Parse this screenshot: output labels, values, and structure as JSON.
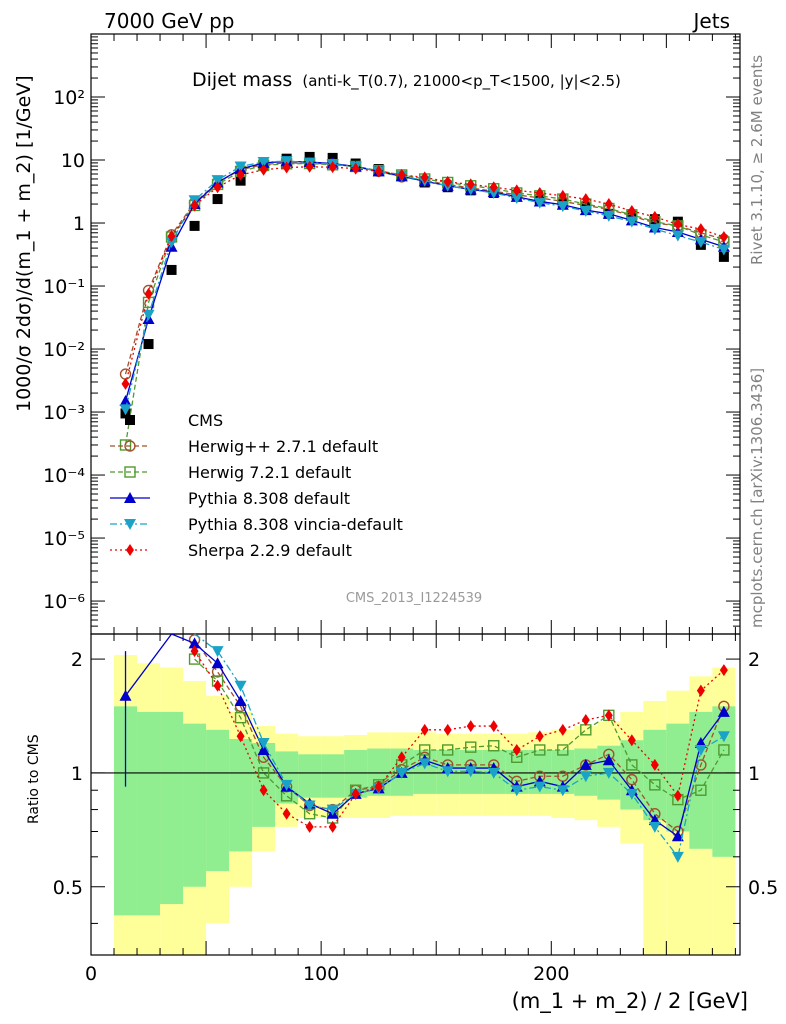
{
  "header": {
    "left": "7000 GeV pp",
    "right": "Jets"
  },
  "side_labels": {
    "rivet": "Rivet 3.1.10, ≥ 2.6M events",
    "mcplots": "mcplots.cern.ch [arXiv:1306.3436]"
  },
  "watermark": "CMS_2013_I1224539",
  "chart_data": [
    {
      "type": "scatter",
      "title_main": "Dijet mass",
      "title_detail": "(anti-k_T(0.7), 21000<p_T<1500, |y|<2.5)",
      "xlabel": "(m_1 + m_2) / 2 [GeV]",
      "ylabel": "1000/σ 2dσ)/d(m_1 + m_2) [1/GeV]",
      "xlim": [
        0,
        282
      ],
      "ylim": [
        3e-07,
        1000
      ],
      "yscale": "log",
      "x_ticks": [
        "0",
        "100",
        "200"
      ],
      "y_ticks": [
        "10^-6",
        "10^-5",
        "10^-4",
        "10^-3",
        "10^-2",
        "10^-1",
        "1",
        "10",
        "10^2"
      ],
      "legend_position": "lower-left",
      "x": [
        15,
        25,
        35,
        45,
        55,
        65,
        75,
        85,
        95,
        105,
        115,
        125,
        135,
        145,
        155,
        165,
        175,
        185,
        195,
        205,
        215,
        225,
        235,
        245,
        255,
        265,
        275
      ],
      "series": [
        {
          "name": "CMS",
          "color": "#000000",
          "marker": "square",
          "line": "none",
          "values": [
            0.00095,
            0.012,
            0.18,
            0.9,
            2.4,
            4.7,
            8.5,
            10.5,
            11.2,
            10.8,
            8.8,
            7.2,
            5.6,
            4.4,
            3.7,
            3.3,
            3.0,
            2.8,
            2.4,
            2.1,
            1.8,
            1.4,
            1.3,
            1.15,
            1.05,
            0.45,
            0.29
          ]
        },
        {
          "name": "Herwig++ 2.7.1 default",
          "color": "#a0522d",
          "marker": "open-circle",
          "line": "dashed",
          "values": [
            0.004,
            0.085,
            0.65,
            2.1,
            4.4,
            7.0,
            8.5,
            9.0,
            8.9,
            8.6,
            7.8,
            6.6,
            5.4,
            4.7,
            4.1,
            3.6,
            3.2,
            2.8,
            2.5,
            2.2,
            1.9,
            1.65,
            1.3,
            1.0,
            0.9,
            0.7,
            0.55
          ]
        },
        {
          "name": "Herwig 7.2.1 default",
          "color": "#4f9a2f",
          "marker": "open-square",
          "line": "dashed",
          "values": [
            0.0003,
            0.055,
            0.6,
            1.9,
            4.1,
            6.6,
            8.2,
            8.7,
            8.8,
            8.4,
            7.9,
            6.8,
            5.8,
            5.0,
            4.4,
            3.9,
            3.5,
            3.0,
            2.7,
            2.4,
            2.0,
            1.7,
            1.35,
            1.05,
            0.9,
            0.65,
            0.5
          ]
        },
        {
          "name": "Pythia 8.308 default",
          "color": "#0000cc",
          "marker": "triangle-up",
          "line": "solid",
          "values": [
            0.0015,
            0.03,
            0.42,
            2.0,
            4.4,
            7.2,
            9.0,
            9.5,
            9.3,
            8.8,
            7.9,
            6.6,
            5.5,
            4.6,
            3.9,
            3.4,
            3.1,
            2.6,
            2.2,
            1.95,
            1.6,
            1.4,
            1.1,
            0.85,
            0.72,
            0.55,
            0.42
          ]
        },
        {
          "name": "Pythia 8.308 vincia-default",
          "color": "#1aa3c7",
          "marker": "triangle-down",
          "line": "dashdot",
          "values": [
            0.0011,
            0.035,
            0.5,
            2.3,
            4.8,
            7.9,
            9.3,
            9.6,
            9.1,
            8.6,
            7.8,
            6.6,
            5.6,
            4.7,
            3.9,
            3.4,
            3.0,
            2.5,
            2.1,
            1.85,
            1.55,
            1.3,
            1.05,
            0.8,
            0.63,
            0.5,
            0.38
          ]
        },
        {
          "name": "Sherpa 2.2.9 default",
          "color": "#ee0000",
          "marker": "diamond",
          "line": "dotted",
          "values": [
            0.0028,
            0.075,
            0.62,
            1.9,
            3.7,
            5.8,
            7.0,
            7.6,
            7.8,
            7.7,
            7.3,
            6.6,
            5.8,
            5.3,
            4.5,
            4.1,
            3.7,
            3.3,
            3.0,
            2.7,
            2.4,
            2.0,
            1.55,
            1.25,
            0.95,
            0.8,
            0.6
          ]
        }
      ]
    },
    {
      "type": "line",
      "ylabel": "Ratio to CMS",
      "xlim": [
        0,
        282
      ],
      "ylim": [
        0.33,
        2.33
      ],
      "yscale": "log",
      "y_ticks": [
        "0.5",
        "1",
        "2"
      ],
      "x": [
        15,
        25,
        35,
        45,
        55,
        65,
        75,
        85,
        95,
        105,
        115,
        125,
        135,
        145,
        155,
        165,
        175,
        185,
        195,
        205,
        215,
        225,
        235,
        245,
        255,
        265,
        275
      ],
      "series": [
        {
          "name": "Herwig++ 2.7.1 default",
          "color": "#a0522d",
          "values": [
            null,
            null,
            null,
            2.25,
            1.85,
            1.5,
            1.1,
            0.92,
            0.82,
            0.8,
            0.9,
            0.92,
            1.02,
            1.1,
            1.05,
            1.05,
            1.05,
            0.95,
            0.98,
            0.98,
            1.05,
            1.12,
            0.96,
            0.78,
            0.7,
            1.05,
            1.5
          ]
        },
        {
          "name": "Herwig 7.2.1 default",
          "color": "#4f9a2f",
          "values": [
            null,
            null,
            null,
            2.0,
            1.75,
            1.4,
            1.0,
            0.87,
            0.78,
            0.76,
            0.9,
            0.93,
            1.05,
            1.15,
            1.15,
            1.17,
            1.18,
            1.1,
            1.15,
            1.15,
            1.3,
            1.42,
            1.05,
            0.93,
            0.85,
            0.9,
            1.15
          ]
        },
        {
          "name": "Pythia 8.308 default",
          "color": "#0000cc",
          "values": [
            1.6,
            null,
            2.35,
            2.2,
            1.95,
            1.55,
            1.15,
            0.92,
            0.83,
            0.78,
            0.88,
            0.91,
            1.0,
            1.08,
            1.03,
            1.03,
            1.03,
            0.92,
            0.95,
            0.92,
            1.05,
            1.08,
            0.9,
            0.75,
            0.68,
            1.2,
            1.45
          ]
        },
        {
          "name": "Pythia 8.308 vincia-default",
          "color": "#1aa3c7",
          "values": [
            null,
            null,
            null,
            2.35,
            2.1,
            1.7,
            1.2,
            0.93,
            0.82,
            0.8,
            0.88,
            0.91,
            1.0,
            1.06,
            1.01,
            1.01,
            1.0,
            0.9,
            0.92,
            0.9,
            0.98,
            1.0,
            0.88,
            0.72,
            0.6,
            1.15,
            1.25
          ]
        },
        {
          "name": "Sherpa 2.2.9 default",
          "color": "#ee0000",
          "values": [
            null,
            null,
            null,
            2.1,
            1.7,
            1.25,
            0.9,
            0.78,
            0.72,
            0.72,
            0.88,
            0.92,
            1.1,
            1.3,
            1.3,
            1.33,
            1.33,
            1.15,
            1.25,
            1.3,
            1.38,
            1.42,
            1.22,
            1.05,
            0.87,
            1.65,
            1.87
          ]
        }
      ],
      "uncertainty_inner": [
        {
          "x0": 10,
          "x1": 20,
          "lo": 0.42,
          "hi": 1.5
        },
        {
          "x0": 20,
          "x1": 30,
          "lo": 0.42,
          "hi": 1.45
        },
        {
          "x0": 30,
          "x1": 40,
          "lo": 0.45,
          "hi": 1.45
        },
        {
          "x0": 40,
          "x1": 50,
          "lo": 0.5,
          "hi": 1.35
        },
        {
          "x0": 50,
          "x1": 60,
          "lo": 0.55,
          "hi": 1.3
        },
        {
          "x0": 60,
          "x1": 70,
          "lo": 0.62,
          "hi": 1.23
        },
        {
          "x0": 70,
          "x1": 80,
          "lo": 0.72,
          "hi": 1.2
        },
        {
          "x0": 80,
          "x1": 90,
          "lo": 0.83,
          "hi": 1.14
        },
        {
          "x0": 90,
          "x1": 100,
          "lo": 0.86,
          "hi": 1.12
        },
        {
          "x0": 100,
          "x1": 110,
          "lo": 0.86,
          "hi": 1.12
        },
        {
          "x0": 110,
          "x1": 120,
          "lo": 0.86,
          "hi": 1.15
        },
        {
          "x0": 120,
          "x1": 130,
          "lo": 0.87,
          "hi": 1.16
        },
        {
          "x0": 130,
          "x1": 140,
          "lo": 0.87,
          "hi": 1.16
        },
        {
          "x0": 140,
          "x1": 150,
          "lo": 0.88,
          "hi": 1.15
        },
        {
          "x0": 150,
          "x1": 160,
          "lo": 0.88,
          "hi": 1.15
        },
        {
          "x0": 160,
          "x1": 170,
          "lo": 0.88,
          "hi": 1.15
        },
        {
          "x0": 170,
          "x1": 180,
          "lo": 0.88,
          "hi": 1.15
        },
        {
          "x0": 180,
          "x1": 190,
          "lo": 0.88,
          "hi": 1.15
        },
        {
          "x0": 190,
          "x1": 200,
          "lo": 0.88,
          "hi": 1.15
        },
        {
          "x0": 200,
          "x1": 210,
          "lo": 0.88,
          "hi": 1.15
        },
        {
          "x0": 210,
          "x1": 220,
          "lo": 0.87,
          "hi": 1.16
        },
        {
          "x0": 220,
          "x1": 230,
          "lo": 0.85,
          "hi": 1.18
        },
        {
          "x0": 230,
          "x1": 240,
          "lo": 0.8,
          "hi": 1.22
        },
        {
          "x0": 240,
          "x1": 250,
          "lo": 0.75,
          "hi": 1.3
        },
        {
          "x0": 250,
          "x1": 260,
          "lo": 0.7,
          "hi": 1.35
        },
        {
          "x0": 260,
          "x1": 270,
          "lo": 0.63,
          "hi": 1.45
        },
        {
          "x0": 270,
          "x1": 280,
          "lo": 0.6,
          "hi": 1.5
        }
      ],
      "uncertainty_outer": [
        {
          "x0": 10,
          "x1": 20,
          "lo": 0.3,
          "hi": 2.05
        },
        {
          "x0": 20,
          "x1": 30,
          "lo": 0.3,
          "hi": 1.95
        },
        {
          "x0": 30,
          "x1": 40,
          "lo": 0.3,
          "hi": 1.9
        },
        {
          "x0": 40,
          "x1": 50,
          "lo": 0.33,
          "hi": 1.75
        },
        {
          "x0": 50,
          "x1": 60,
          "lo": 0.4,
          "hi": 1.6
        },
        {
          "x0": 60,
          "x1": 70,
          "lo": 0.5,
          "hi": 1.45
        },
        {
          "x0": 70,
          "x1": 80,
          "lo": 0.62,
          "hi": 1.33
        },
        {
          "x0": 80,
          "x1": 90,
          "lo": 0.72,
          "hi": 1.27
        },
        {
          "x0": 90,
          "x1": 100,
          "lo": 0.76,
          "hi": 1.25
        },
        {
          "x0": 100,
          "x1": 110,
          "lo": 0.76,
          "hi": 1.25
        },
        {
          "x0": 110,
          "x1": 120,
          "lo": 0.76,
          "hi": 1.26
        },
        {
          "x0": 120,
          "x1": 130,
          "lo": 0.76,
          "hi": 1.28
        },
        {
          "x0": 130,
          "x1": 140,
          "lo": 0.77,
          "hi": 1.28
        },
        {
          "x0": 140,
          "x1": 150,
          "lo": 0.77,
          "hi": 1.28
        },
        {
          "x0": 150,
          "x1": 160,
          "lo": 0.77,
          "hi": 1.27
        },
        {
          "x0": 160,
          "x1": 170,
          "lo": 0.77,
          "hi": 1.27
        },
        {
          "x0": 170,
          "x1": 180,
          "lo": 0.77,
          "hi": 1.27
        },
        {
          "x0": 180,
          "x1": 190,
          "lo": 0.77,
          "hi": 1.27
        },
        {
          "x0": 190,
          "x1": 200,
          "lo": 0.77,
          "hi": 1.28
        },
        {
          "x0": 200,
          "x1": 210,
          "lo": 0.76,
          "hi": 1.3
        },
        {
          "x0": 210,
          "x1": 220,
          "lo": 0.75,
          "hi": 1.33
        },
        {
          "x0": 220,
          "x1": 230,
          "lo": 0.72,
          "hi": 1.37
        },
        {
          "x0": 230,
          "x1": 240,
          "lo": 0.65,
          "hi": 1.45
        },
        {
          "x0": 240,
          "x1": 250,
          "lo": 0.33,
          "hi": 1.55
        },
        {
          "x0": 250,
          "x1": 260,
          "lo": 0.33,
          "hi": 1.65
        },
        {
          "x0": 260,
          "x1": 270,
          "lo": 0.33,
          "hi": 1.8
        },
        {
          "x0": 270,
          "x1": 280,
          "lo": 0.33,
          "hi": 1.9
        }
      ],
      "error_bar": {
        "x": 15,
        "lo": 0.92,
        "hi": 2.1
      },
      "x_ticks": [
        "0",
        "100",
        "200"
      ]
    }
  ]
}
